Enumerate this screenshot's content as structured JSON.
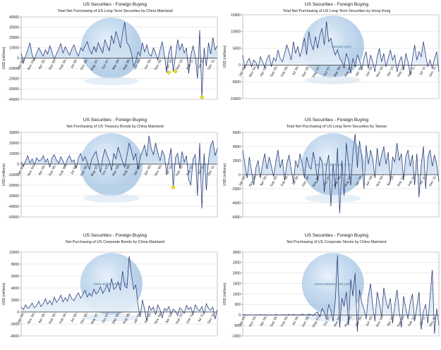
{
  "colors": {
    "line": "#1c2a6b",
    "fill_top": "#b9d3ea",
    "fill_bottom": "#eef5fb",
    "zero_line": "#333333",
    "grid": "#d7d7d7",
    "marker": "#f2e500",
    "frame": "#9a9a9a"
  },
  "chart_data": [
    {
      "type": "area",
      "title": "US Securities - Foreign Buying",
      "subtitle": "Total Net Purchasing of US Long-Term Securities by China Mainland",
      "ylabel": "USD (millions)",
      "watermark": "www.statsweeper.com",
      "yticks": [
        "40000",
        "30000",
        "20000",
        "10000",
        "0",
        "-10000",
        "-20000",
        "-30000",
        "-40000"
      ],
      "ylim": [
        -40000,
        40000
      ],
      "xticks": [
        "Jan '04",
        "Nov '04",
        "Apr '05",
        "Sep '05",
        "Feb '06",
        "Jul '06",
        "Dec '06",
        "May '07",
        "Oct '07",
        "Mar '08",
        "Aug '08",
        "Jan '09",
        "Jun '09",
        "Nov '09",
        "Apr '10",
        "Sep '10",
        "Feb '11",
        "Jul '11",
        "Dec '11"
      ],
      "values": [
        5000,
        -5000,
        2000,
        8000,
        15000,
        3000,
        -2000,
        5000,
        10000,
        6000,
        2000,
        8000,
        4000,
        12000,
        6000,
        -1000,
        4000,
        9000,
        14000,
        5000,
        11000,
        7000,
        3000,
        9000,
        13000,
        6000,
        2000,
        10000,
        7000,
        12000,
        16000,
        8000,
        4000,
        11000,
        6000,
        15000,
        9000,
        5000,
        18000,
        12000,
        7000,
        22000,
        14000,
        26000,
        19000,
        10000,
        24000,
        35000,
        15000,
        12000,
        5000,
        -8000,
        -3000,
        6000,
        2000,
        15000,
        6000,
        13000,
        4000,
        2000,
        10000,
        5000,
        -2000,
        8000,
        16000,
        3000,
        -14000,
        5000,
        12000,
        -13000,
        2000,
        18000,
        8000,
        14000,
        5000,
        10000,
        -15000,
        3000,
        12000,
        2000,
        -20000,
        27000,
        -38000,
        10000,
        -8000,
        15000,
        4000,
        20000,
        8000,
        12000
      ],
      "markers": [
        {
          "index": 67,
          "value": -14000
        },
        {
          "index": 70,
          "value": -13000
        },
        {
          "index": 82,
          "value": -38000
        }
      ]
    },
    {
      "type": "area",
      "title": "US Securities - Foreign Buying",
      "subtitle": "Total Net Purchasing of US Long-Term Securities by Hong Kong",
      "ylabel": "USD (millions)",
      "watermark": "www.statsweeper.com",
      "yticks": [
        "15000",
        "10000",
        "5000",
        "0",
        "-5000",
        "-10000"
      ],
      "ylim": [
        -10000,
        15000
      ],
      "xticks": [
        "Jan '04",
        "Nov '04",
        "Apr '05",
        "Sep '05",
        "Feb '06",
        "Jul '06",
        "Dec '06",
        "May '07",
        "Oct '07",
        "Mar '08",
        "Aug '08",
        "Jan '09",
        "Jun '09",
        "Nov '09",
        "Apr '10",
        "Sep '10",
        "Feb '11",
        "Jul '11",
        "Dec '11"
      ],
      "values": [
        3000,
        -1000,
        1000,
        2000,
        -500,
        1500,
        800,
        -1200,
        2500,
        1000,
        -800,
        1800,
        3000,
        -500,
        2200,
        1200,
        4500,
        2000,
        1000,
        3500,
        6000,
        4000,
        1500,
        7000,
        3500,
        5500,
        2500,
        5000,
        8000,
        3000,
        10000,
        6500,
        4500,
        8500,
        5000,
        9000,
        11000,
        6000,
        13000,
        7000,
        8000,
        5000,
        3000,
        4500,
        2000,
        1000,
        -1000,
        3500,
        1500,
        -2500,
        2000,
        -500,
        3000,
        1500,
        -1500,
        2000,
        4000,
        -1000,
        3000,
        1000,
        -2000,
        2500,
        5000,
        1000,
        3500,
        -500,
        2000,
        4500,
        1500,
        3000,
        -2000,
        1000,
        2500,
        -1500,
        3500,
        1000,
        -3000,
        2000,
        6000,
        1500,
        4000,
        2500,
        7000,
        3000,
        -500,
        1500,
        -1000,
        2000,
        4000,
        -2000
      ]
    },
    {
      "type": "area",
      "title": "US Securities - Foreign Buying",
      "subtitle": "Net Purchasing of US Treasury Bonds by China Mainland",
      "ylabel": "USD (millions)",
      "watermark": "www.statsweeper.com",
      "yticks": [
        "30000",
        "20000",
        "10000",
        "0",
        "-10000",
        "-20000",
        "-30000",
        "-40000",
        "-50000"
      ],
      "ylim": [
        -50000,
        30000
      ],
      "xticks": [
        "Jan '04",
        "Nov '04",
        "Apr '05",
        "Sep '05",
        "Feb '06",
        "Jul '06",
        "Dec '06",
        "May '07",
        "Oct '07",
        "Mar '08",
        "Aug '08",
        "Jan '09",
        "Jun '09",
        "Nov '09",
        "Apr '10",
        "Sep '10",
        "Feb '11",
        "Jul '11",
        "Dec '11"
      ],
      "values": [
        2000,
        -2000,
        3000,
        8000,
        1000,
        5000,
        -1000,
        6000,
        3000,
        4000,
        8000,
        2000,
        5000,
        -3000,
        6000,
        9000,
        4000,
        1000,
        7000,
        3000,
        -2000,
        5000,
        8000,
        2000,
        4000,
        -4000,
        6000,
        10000,
        3000,
        7000,
        1000,
        -5000,
        4000,
        9000,
        12000,
        2000,
        -8000,
        6000,
        14000,
        8000,
        3000,
        -6000,
        10000,
        5000,
        16000,
        9000,
        2000,
        -3000,
        8000,
        20000,
        13000,
        4000,
        10000,
        -5000,
        6000,
        12000,
        18000,
        7000,
        27000,
        15000,
        9000,
        20000,
        11000,
        3000,
        13000,
        8000,
        -9000,
        4000,
        15000,
        -22000,
        6000,
        10000,
        -4000,
        12000,
        2000,
        8000,
        -15000,
        -20000,
        5000,
        9000,
        -30000,
        20000,
        -42000,
        10000,
        -25000,
        4000,
        18000,
        22000,
        8000,
        15000
      ],
      "markers": [
        {
          "index": 69,
          "value": -22000
        }
      ]
    },
    {
      "type": "area",
      "title": "US Securities - Foreign Buying",
      "subtitle": "Total Net Purchasing of US Long-Term Securities by Taiwan",
      "ylabel": "USD (millions)",
      "watermark": "www.statsweeper.com",
      "yticks": [
        "6000",
        "4000",
        "2000",
        "0",
        "-2000",
        "-4000",
        "-6000"
      ],
      "ylim": [
        -6000,
        6000
      ],
      "xticks": [
        "Jan '04",
        "Nov '04",
        "Apr '05",
        "Sep '05",
        "Feb '06",
        "Jul '06",
        "Dec '06",
        "May '07",
        "Oct '07",
        "Mar '08",
        "Aug '08",
        "Jan '09",
        "Jun '09",
        "Nov '09",
        "Apr '10",
        "Sep '10",
        "Feb '11",
        "Jul '11",
        "Dec '11"
      ],
      "values": [
        3500,
        1500,
        -500,
        2500,
        500,
        -1500,
        1000,
        2000,
        -500,
        1500,
        3000,
        800,
        2500,
        1200,
        -300,
        1800,
        3500,
        1000,
        2200,
        -800,
        1500,
        2800,
        700,
        -1200,
        2000,
        1000,
        3000,
        1500,
        -500,
        2500,
        1200,
        800,
        3200,
        1500,
        -1000,
        2500,
        1800,
        -2500,
        1200,
        2800,
        -4500,
        1500,
        -2000,
        3800,
        -5500,
        2000,
        -3000,
        4500,
        1500,
        -1500,
        3000,
        5800,
        1000,
        4800,
        2500,
        -2000,
        4200,
        1500,
        3500,
        2200,
        -500,
        3800,
        1200,
        2800,
        4000,
        1500,
        3200,
        -1000,
        2500,
        1800,
        4500,
        2000,
        3000,
        -800,
        2600,
        3500,
        1200,
        2800,
        -1500,
        3000,
        -3200,
        1500,
        4000,
        -2000,
        2500,
        3500,
        1200,
        2800,
        1500,
        -1000
      ]
    },
    {
      "type": "area",
      "title": "US Securities - Foreign Buying",
      "subtitle": "Net Purchasing of US Corporate Bonds by China Mainland",
      "ylabel": "USD (millions)",
      "watermark": "www.statsweeper.com",
      "yticks": [
        "10000",
        "8000",
        "6000",
        "4000",
        "2000",
        "0",
        "-2000",
        "-4000"
      ],
      "ylim": [
        -4000,
        10000
      ],
      "xticks": [
        "Jan '04",
        "Nov '04",
        "Apr '05",
        "Sep '05",
        "Feb '06",
        "Jul '06",
        "Dec '06",
        "May '07",
        "Oct '07",
        "Mar '08",
        "Aug '08",
        "Jan '09",
        "Jun '09",
        "Nov '09",
        "Apr '10",
        "Sep '10",
        "Feb '11",
        "Jul '11",
        "Dec '11"
      ],
      "values": [
        800,
        400,
        1200,
        600,
        900,
        1500,
        700,
        1100,
        1800,
        900,
        1400,
        2200,
        1300,
        1900,
        1200,
        2500,
        1600,
        2100,
        2800,
        1700,
        2400,
        1800,
        3000,
        2200,
        1900,
        2700,
        3200,
        2300,
        2900,
        3600,
        2500,
        3100,
        2600,
        3800,
        3000,
        3400,
        4200,
        3100,
        3700,
        4500,
        3300,
        5600,
        3800,
        4100,
        5000,
        3600,
        6800,
        4300,
        4000,
        9300,
        6500,
        3800,
        4500,
        1200,
        -800,
        2000,
        500,
        -1500,
        1000,
        300,
        800,
        -500,
        1200,
        400,
        -1000,
        600,
        200,
        900,
        -300,
        500,
        100,
        -600,
        700,
        300,
        -200,
        1100,
        400,
        800,
        -400,
        1200,
        500,
        200,
        900,
        -300,
        1400,
        600,
        300,
        800,
        -1200,
        400
      ]
    },
    {
      "type": "area",
      "title": "US Securities - Foreign Buying",
      "subtitle": "Net Purchasing of US Corporate Stocks by China Mainland",
      "ylabel": "USD (millions)",
      "watermark": "www.statsweeper.com",
      "yticks": [
        "3000",
        "2500",
        "2000",
        "1500",
        "1000",
        "500",
        "0",
        "-500",
        "-1000"
      ],
      "ylim": [
        -1000,
        3000
      ],
      "xticks": [
        "Jan '04",
        "Nov '04",
        "Apr '05",
        "Sep '05",
        "Feb '06",
        "Jul '06",
        "Dec '06",
        "May '07",
        "Oct '07",
        "Mar '08",
        "Aug '08",
        "Jan '09",
        "Jun '09",
        "Nov '09",
        "Apr '10",
        "Sep '10",
        "Feb '11",
        "Jul '11",
        "Dec '11"
      ],
      "values": [
        0,
        20,
        -10,
        15,
        5,
        0,
        10,
        -5,
        20,
        0,
        15,
        5,
        -10,
        10,
        0,
        20,
        5,
        -5,
        15,
        10,
        0,
        25,
        -10,
        30,
        5,
        15,
        -20,
        40,
        10,
        -15,
        50,
        20,
        -30,
        80,
        150,
        -100,
        300,
        120,
        -200,
        500,
        200,
        -300,
        700,
        2850,
        -600,
        800,
        400,
        1100,
        -500,
        1700,
        900,
        2000,
        -800,
        1200,
        600,
        300,
        -200,
        900,
        1500,
        400,
        -300,
        1100,
        600,
        -100,
        1300,
        700,
        300,
        800,
        -400,
        500,
        1200,
        200,
        -600,
        900,
        300,
        -200,
        600,
        1000,
        -300,
        400,
        1100,
        -700,
        200,
        500,
        -400,
        900,
        2150,
        -900,
        300,
        -500
      ]
    }
  ]
}
